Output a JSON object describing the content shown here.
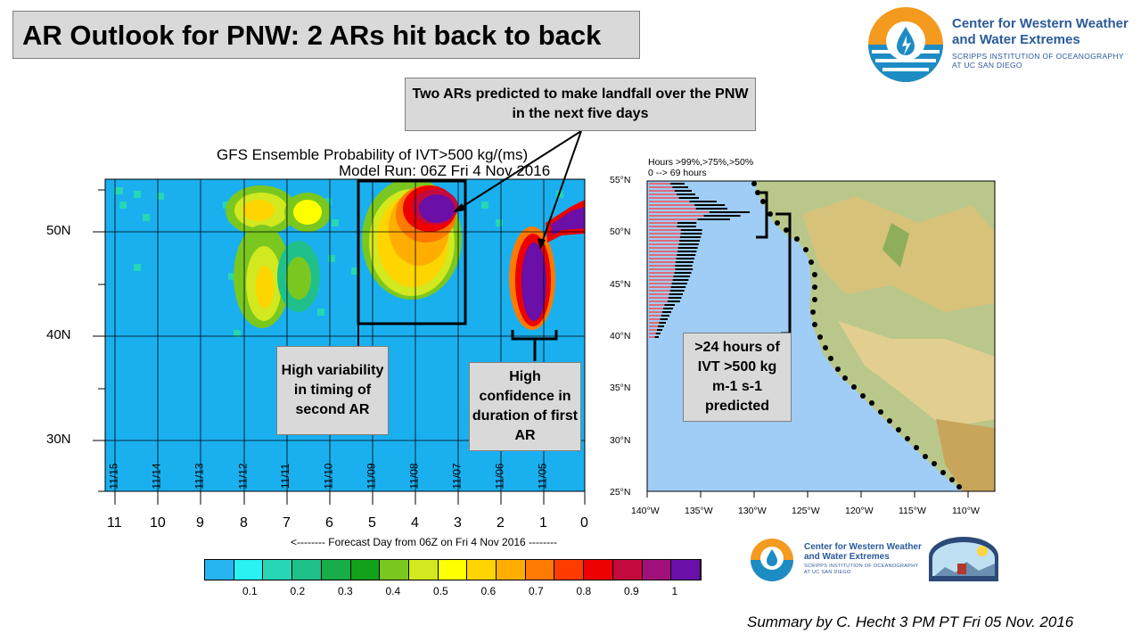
{
  "title": "AR Outlook for PNW: 2 ARs hit back to back",
  "callouts": {
    "top": "Two ARs predicted to make landfall over the PNW in the next five days",
    "variability": "High variability in timing of second AR",
    "confidence": "High confidence in duration of first AR",
    "hours_prefix": ">24 hours of IVT >500 kg",
    "hours_units": "m-1 s-1 predicted"
  },
  "logo": {
    "name_line1": "Center for Western Weather",
    "name_line2": "and Water Extremes",
    "sub_line1": "SCRIPPS INSTITUTION OF OCEANOGRAPHY",
    "sub_line2": "AT UC SAN DIEGO"
  },
  "plot": {
    "title_line1": "GFS Ensemble Probability of IVT>500 kg/(ms)",
    "title_line2": "Model Run: 06Z Fri 4 Nov 2016",
    "lat_labels": [
      "50N",
      "40N",
      "30N"
    ],
    "date_labels": [
      "11/15",
      "11/14",
      "11/13",
      "11/12",
      "11/11",
      "11/10",
      "11/09",
      "11/08",
      "11/07",
      "11/06",
      "11/05"
    ],
    "forecast_days": [
      "11",
      "10",
      "9",
      "8",
      "7",
      "6",
      "5",
      "4",
      "3",
      "2",
      "1",
      "0"
    ],
    "xlabel": "<-------- Forecast Day from 06Z on Fri 4 Nov 2016 --------",
    "colorbar_labels": [
      "0.1",
      "0.2",
      "0.3",
      "0.4",
      "0.5",
      "0.6",
      "0.7",
      "0.8",
      "0.9",
      "1"
    ],
    "colorbar_colors": [
      "#27b4f0",
      "#2af2f2",
      "#26d6b5",
      "#20c08a",
      "#18ad49",
      "#11a11a",
      "#7ac81f",
      "#d2e81f",
      "#ffff00",
      "#ffd500",
      "#ffae00",
      "#ff7a00",
      "#ff3b00",
      "#ee0000",
      "#c40a3c",
      "#a0107a",
      "#6a0fa8"
    ]
  },
  "map": {
    "legend_line1": "Hours >99%,>75%,>50%",
    "legend_line2": "0 --> 69 hours",
    "lat_labels": [
      "55°N",
      "50°N",
      "45°N",
      "40°N",
      "35°N",
      "30°N",
      "25°N"
    ],
    "lon_labels": [
      "140°W",
      "135°W",
      "130°W",
      "125°W",
      "120°W",
      "115°W",
      "110°W"
    ]
  },
  "footer": "Summary by C. Hecht 3 PM PT Fri 05 Nov. 2016",
  "colors": {
    "ocean": "#1ab0ef",
    "map_ocean": "#9fcdf5",
    "callout_bg": "#d9d9d9",
    "accent": "#f39a1f",
    "logo_blue": "#2a5a9a"
  }
}
